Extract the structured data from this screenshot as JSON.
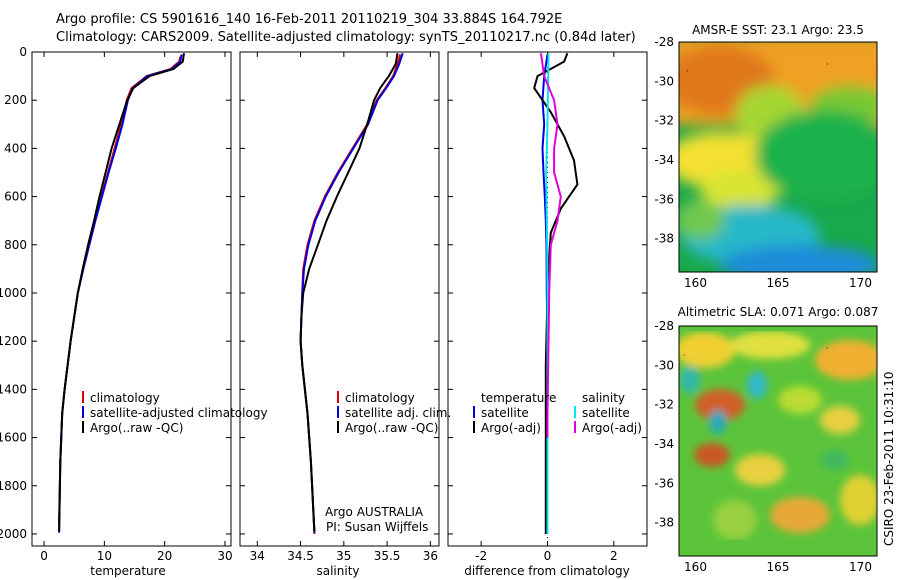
{
  "header": {
    "line1": "Argo profile: CS 5901616_140 16-Feb-2011 20110219_304 33.884S 164.792E",
    "line2": "Climatology: CARS2009. Satellite-adjusted climatology: synTS_20110217.nc (0.84d later)"
  },
  "footer": {
    "credit": "CSIRO 23-Feb-2011 10:31:10"
  },
  "colors": {
    "climatology": "#dd0000",
    "satellite": "#0000dd",
    "argo": "#000000",
    "sat_sal": "#00e5ee",
    "argo_sal": "#e000e0"
  },
  "chart_data": [
    {
      "type": "line",
      "panel": "temperature",
      "xlabel": "temperature",
      "ylabel": "",
      "xlim": [
        -2,
        31
      ],
      "ylim": [
        2050,
        0
      ],
      "xticks": [
        "0",
        "10",
        "20",
        "30"
      ],
      "yticks": [
        "0",
        "200",
        "400",
        "600",
        "800",
        "1000",
        "1200",
        "1400",
        "1600",
        "1800",
        "2000"
      ],
      "series": [
        {
          "name": "climatology",
          "color_key": "climatology",
          "x": [
            22.6,
            22.4,
            21.0,
            17.0,
            14.5,
            13.7,
            12.8,
            11.7,
            10.6,
            9.5,
            8.5,
            7.5,
            6.5,
            5.6,
            5.0,
            4.4,
            3.9,
            3.4,
            3.0,
            2.7,
            2.5
          ],
          "y": [
            20,
            40,
            70,
            100,
            150,
            200,
            300,
            400,
            500,
            600,
            700,
            800,
            900,
            1000,
            1100,
            1200,
            1300,
            1400,
            1500,
            1700,
            1950
          ]
        },
        {
          "name": "satellite-adjusted climatology",
          "color_key": "satellite",
          "x": [
            22.8,
            22.6,
            21.2,
            17.1,
            14.7,
            13.9,
            13.0,
            11.9,
            10.7,
            9.6,
            8.5,
            7.5,
            6.5,
            5.6,
            5.0,
            4.4,
            3.9,
            3.4,
            3.0,
            2.7,
            2.5
          ],
          "y": [
            10,
            40,
            70,
            100,
            150,
            200,
            300,
            400,
            500,
            600,
            700,
            800,
            900,
            1000,
            1100,
            1200,
            1300,
            1400,
            1500,
            1700,
            1995
          ]
        },
        {
          "name": "Argo(..raw -QC)",
          "color_key": "argo",
          "x": [
            23.2,
            23.0,
            21.5,
            17.5,
            14.8,
            13.8,
            12.5,
            11.2,
            10.2,
            9.2,
            8.3,
            7.3,
            6.4,
            5.6,
            5.0,
            4.4,
            3.9,
            3.4,
            3.0,
            2.7,
            2.5
          ],
          "y": [
            5,
            40,
            70,
            100,
            150,
            200,
            300,
            400,
            500,
            600,
            700,
            800,
            900,
            1000,
            1100,
            1200,
            1300,
            1400,
            1500,
            1700,
            1990
          ]
        }
      ],
      "legend": [
        "climatology",
        "satellite-adjusted climatology",
        "Argo(..raw -QC)"
      ]
    },
    {
      "type": "line",
      "panel": "salinity",
      "xlabel": "salinity",
      "ylabel": "",
      "xlim": [
        33.8,
        36.1
      ],
      "ylim": [
        2050,
        0
      ],
      "xticks": [
        "34",
        "34.5",
        "35",
        "35.5",
        "36"
      ],
      "series": [
        {
          "name": "climatology",
          "color_key": "climatology",
          "x": [
            35.65,
            35.62,
            35.57,
            35.48,
            35.38,
            35.27,
            35.1,
            34.93,
            34.78,
            34.66,
            34.58,
            34.53,
            34.52,
            34.51,
            34.5,
            34.52,
            34.55,
            34.58,
            34.62,
            34.64,
            34.66
          ],
          "y": [
            10,
            50,
            100,
            150,
            200,
            300,
            400,
            500,
            600,
            700,
            800,
            900,
            1000,
            1100,
            1200,
            1300,
            1400,
            1500,
            1700,
            1850,
            2000
          ]
        },
        {
          "name": "satellite adj. clim.",
          "color_key": "satellite",
          "x": [
            35.68,
            35.64,
            35.58,
            35.49,
            35.39,
            35.28,
            35.11,
            34.94,
            34.79,
            34.67,
            34.59,
            34.54,
            34.52,
            34.51,
            34.5,
            34.52,
            34.55,
            34.58,
            34.62,
            34.64,
            34.66
          ],
          "y": [
            5,
            50,
            100,
            150,
            200,
            300,
            400,
            500,
            600,
            700,
            800,
            900,
            1000,
            1100,
            1200,
            1300,
            1400,
            1500,
            1700,
            1850,
            1995
          ]
        },
        {
          "name": "Argo(..raw -QC)",
          "color_key": "argo",
          "x": [
            35.62,
            35.6,
            35.52,
            35.42,
            35.35,
            35.27,
            35.18,
            35.05,
            34.92,
            34.8,
            34.7,
            34.6,
            34.53,
            34.51,
            34.5,
            34.52,
            34.55,
            34.58,
            34.62,
            34.64,
            34.66
          ],
          "y": [
            5,
            50,
            100,
            150,
            200,
            300,
            400,
            500,
            600,
            700,
            800,
            900,
            1000,
            1100,
            1200,
            1300,
            1400,
            1500,
            1700,
            1850,
            1990
          ]
        }
      ],
      "legend": [
        "climatology",
        "satellite adj. clim.",
        "Argo(..raw -QC)"
      ],
      "annotation": [
        "Argo AUSTRALIA",
        "PI: Susan Wijffels"
      ]
    },
    {
      "type": "line",
      "panel": "difference",
      "xlabel": "difference from climatology",
      "ylabel": "",
      "xlim": [
        -3,
        3
      ],
      "ylim": [
        2050,
        0
      ],
      "xticks": [
        "-2",
        "0",
        "2"
      ],
      "series": [
        {
          "name": "temperature satellite",
          "color_key": "satellite",
          "x": [
            0.0,
            -0.1,
            -0.15,
            -0.1,
            -0.15,
            -0.12,
            -0.08,
            -0.05,
            -0.03,
            -0.02,
            0.0,
            0.0,
            0.0,
            0.0
          ],
          "y": [
            10,
            100,
            200,
            300,
            400,
            500,
            600,
            700,
            800,
            1000,
            1200,
            1500,
            1800,
            2000
          ]
        },
        {
          "name": "temperature Argo(-adj)",
          "color_key": "argo",
          "x": [
            0.6,
            0.5,
            -0.3,
            -0.4,
            0.1,
            0.5,
            0.8,
            0.9,
            0.4,
            0.1,
            0.05,
            0.0,
            -0.05,
            -0.05,
            -0.05
          ],
          "y": [
            5,
            40,
            100,
            150,
            250,
            350,
            450,
            550,
            650,
            750,
            850,
            1000,
            1300,
            1700,
            2000
          ]
        },
        {
          "name": "salinity satellite",
          "color_key": "sat_sal",
          "x": [
            0.03,
            0.02,
            0.01,
            0.0,
            -0.02,
            -0.04,
            -0.03,
            -0.02,
            -0.01,
            0.0,
            0.0,
            0.0
          ],
          "y": [
            5,
            100,
            200,
            300,
            400,
            500,
            600,
            700,
            800,
            1000,
            1500,
            2000
          ]
        },
        {
          "name": "salinity Argo(-adj)",
          "color_key": "argo_sal",
          "x": [
            -0.2,
            -0.1,
            0.2,
            0.3,
            0.2,
            0.2,
            0.4,
            0.3,
            0.1,
            0.05,
            0.0,
            0.0
          ],
          "y": [
            5,
            100,
            200,
            300,
            400,
            500,
            600,
            700,
            800,
            1000,
            1500,
            1600
          ]
        }
      ],
      "legend_temperature": {
        "title": "temperature",
        "items": [
          "satellite",
          "Argo(-adj)"
        ]
      },
      "legend_salinity": {
        "title": "salinity",
        "items": [
          "satellite",
          "Argo(-adj)"
        ]
      }
    },
    {
      "type": "heatmap",
      "panel": "sst",
      "title": "AMSR-E SST: 23.1 Argo: 23.5",
      "xlim": [
        159,
        171
      ],
      "ylim": [
        -39.7,
        -28
      ],
      "xticks": [
        "160",
        "165",
        "170"
      ],
      "yticks": [
        "-28",
        "-30",
        "-32",
        "-34",
        "-36",
        "-38"
      ],
      "marker": {
        "lon": 164.8,
        "lat": -33.9
      }
    },
    {
      "type": "heatmap",
      "panel": "sla",
      "title": "Altimetric SLA: 0.071 Argo: 0.087",
      "xlim": [
        159,
        171
      ],
      "ylim": [
        -39.7,
        -28
      ],
      "xticks": [
        "160",
        "165",
        "170"
      ],
      "yticks": [
        "-28",
        "-30",
        "-32",
        "-34",
        "-36",
        "-38"
      ],
      "marker": {
        "lon": 164.8,
        "lat": -33.9
      }
    }
  ]
}
